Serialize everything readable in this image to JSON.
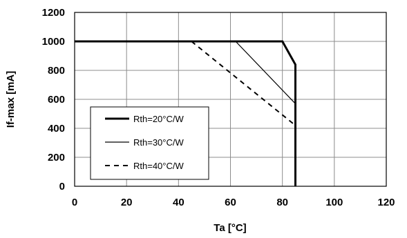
{
  "chart_data": {
    "type": "line",
    "title": "",
    "xlabel": "Ta [°C]",
    "ylabel": "If-max  [mA]",
    "xlim": [
      0,
      120
    ],
    "ylim": [
      0,
      1200
    ],
    "xticks": [
      0,
      20,
      40,
      60,
      80,
      100,
      120
    ],
    "yticks": [
      0,
      200,
      400,
      600,
      800,
      1000,
      1200
    ],
    "xtick_labels": [
      "0",
      "20",
      "40",
      "60",
      "80",
      "100",
      "120"
    ],
    "ytick_labels": [
      "0",
      "200",
      "400",
      "600",
      "800",
      "1000",
      "1200"
    ],
    "grid": true,
    "legend_position": "bottom-left",
    "series": [
      {
        "name": "Rth=20°C/W",
        "style": "solid-thick",
        "color": "#000000",
        "points": [
          [
            0,
            1000
          ],
          [
            80,
            1000
          ],
          [
            85,
            840
          ],
          [
            85,
            0
          ]
        ]
      },
      {
        "name": "Rth=30°C/W",
        "style": "solid-thin",
        "color": "#000000",
        "points": [
          [
            0,
            1000
          ],
          [
            62,
            1000
          ],
          [
            85,
            570
          ],
          [
            85,
            0
          ]
        ]
      },
      {
        "name": "Rth=40°C/W",
        "style": "dashed",
        "color": "#000000",
        "points": [
          [
            0,
            1000
          ],
          [
            45,
            1000
          ],
          [
            85,
            420
          ],
          [
            85,
            0
          ]
        ]
      }
    ]
  }
}
